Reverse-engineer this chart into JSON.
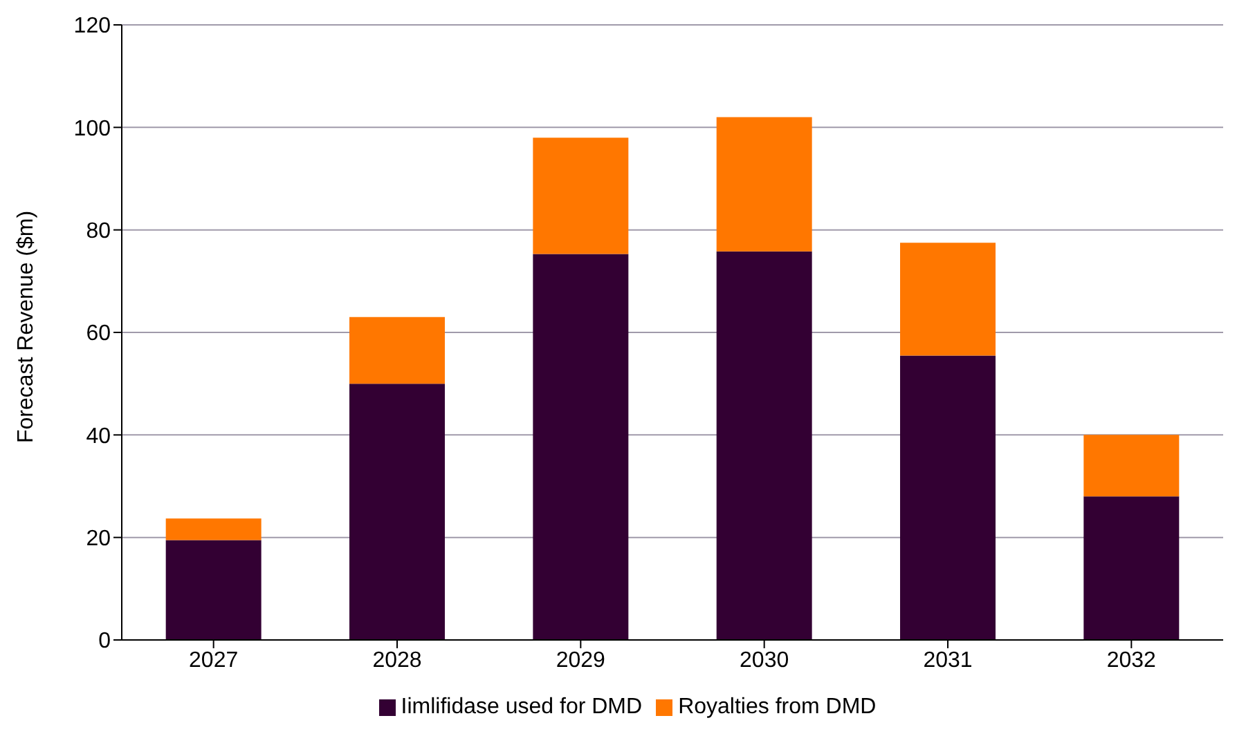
{
  "chart_data": {
    "type": "bar",
    "ylabel": "Forecast Revenue ($m)",
    "categories": [
      "2027",
      "2028",
      "2029",
      "2030",
      "2031",
      "2032"
    ],
    "series": [
      {
        "name": "Iimlifidase used for DMD",
        "color": "#330033",
        "values": [
          19.5,
          50,
          75.3,
          75.8,
          55.5,
          28
        ]
      },
      {
        "name": "Royalties from DMD",
        "color": "#ff7700",
        "values": [
          4.2,
          13,
          22.7,
          26.2,
          22,
          12
        ]
      }
    ],
    "stacked": true,
    "ylim": [
      0,
      120
    ],
    "yticks": [
      0,
      20,
      40,
      60,
      80,
      100,
      120
    ],
    "grid": "y",
    "legend": "bottom"
  }
}
